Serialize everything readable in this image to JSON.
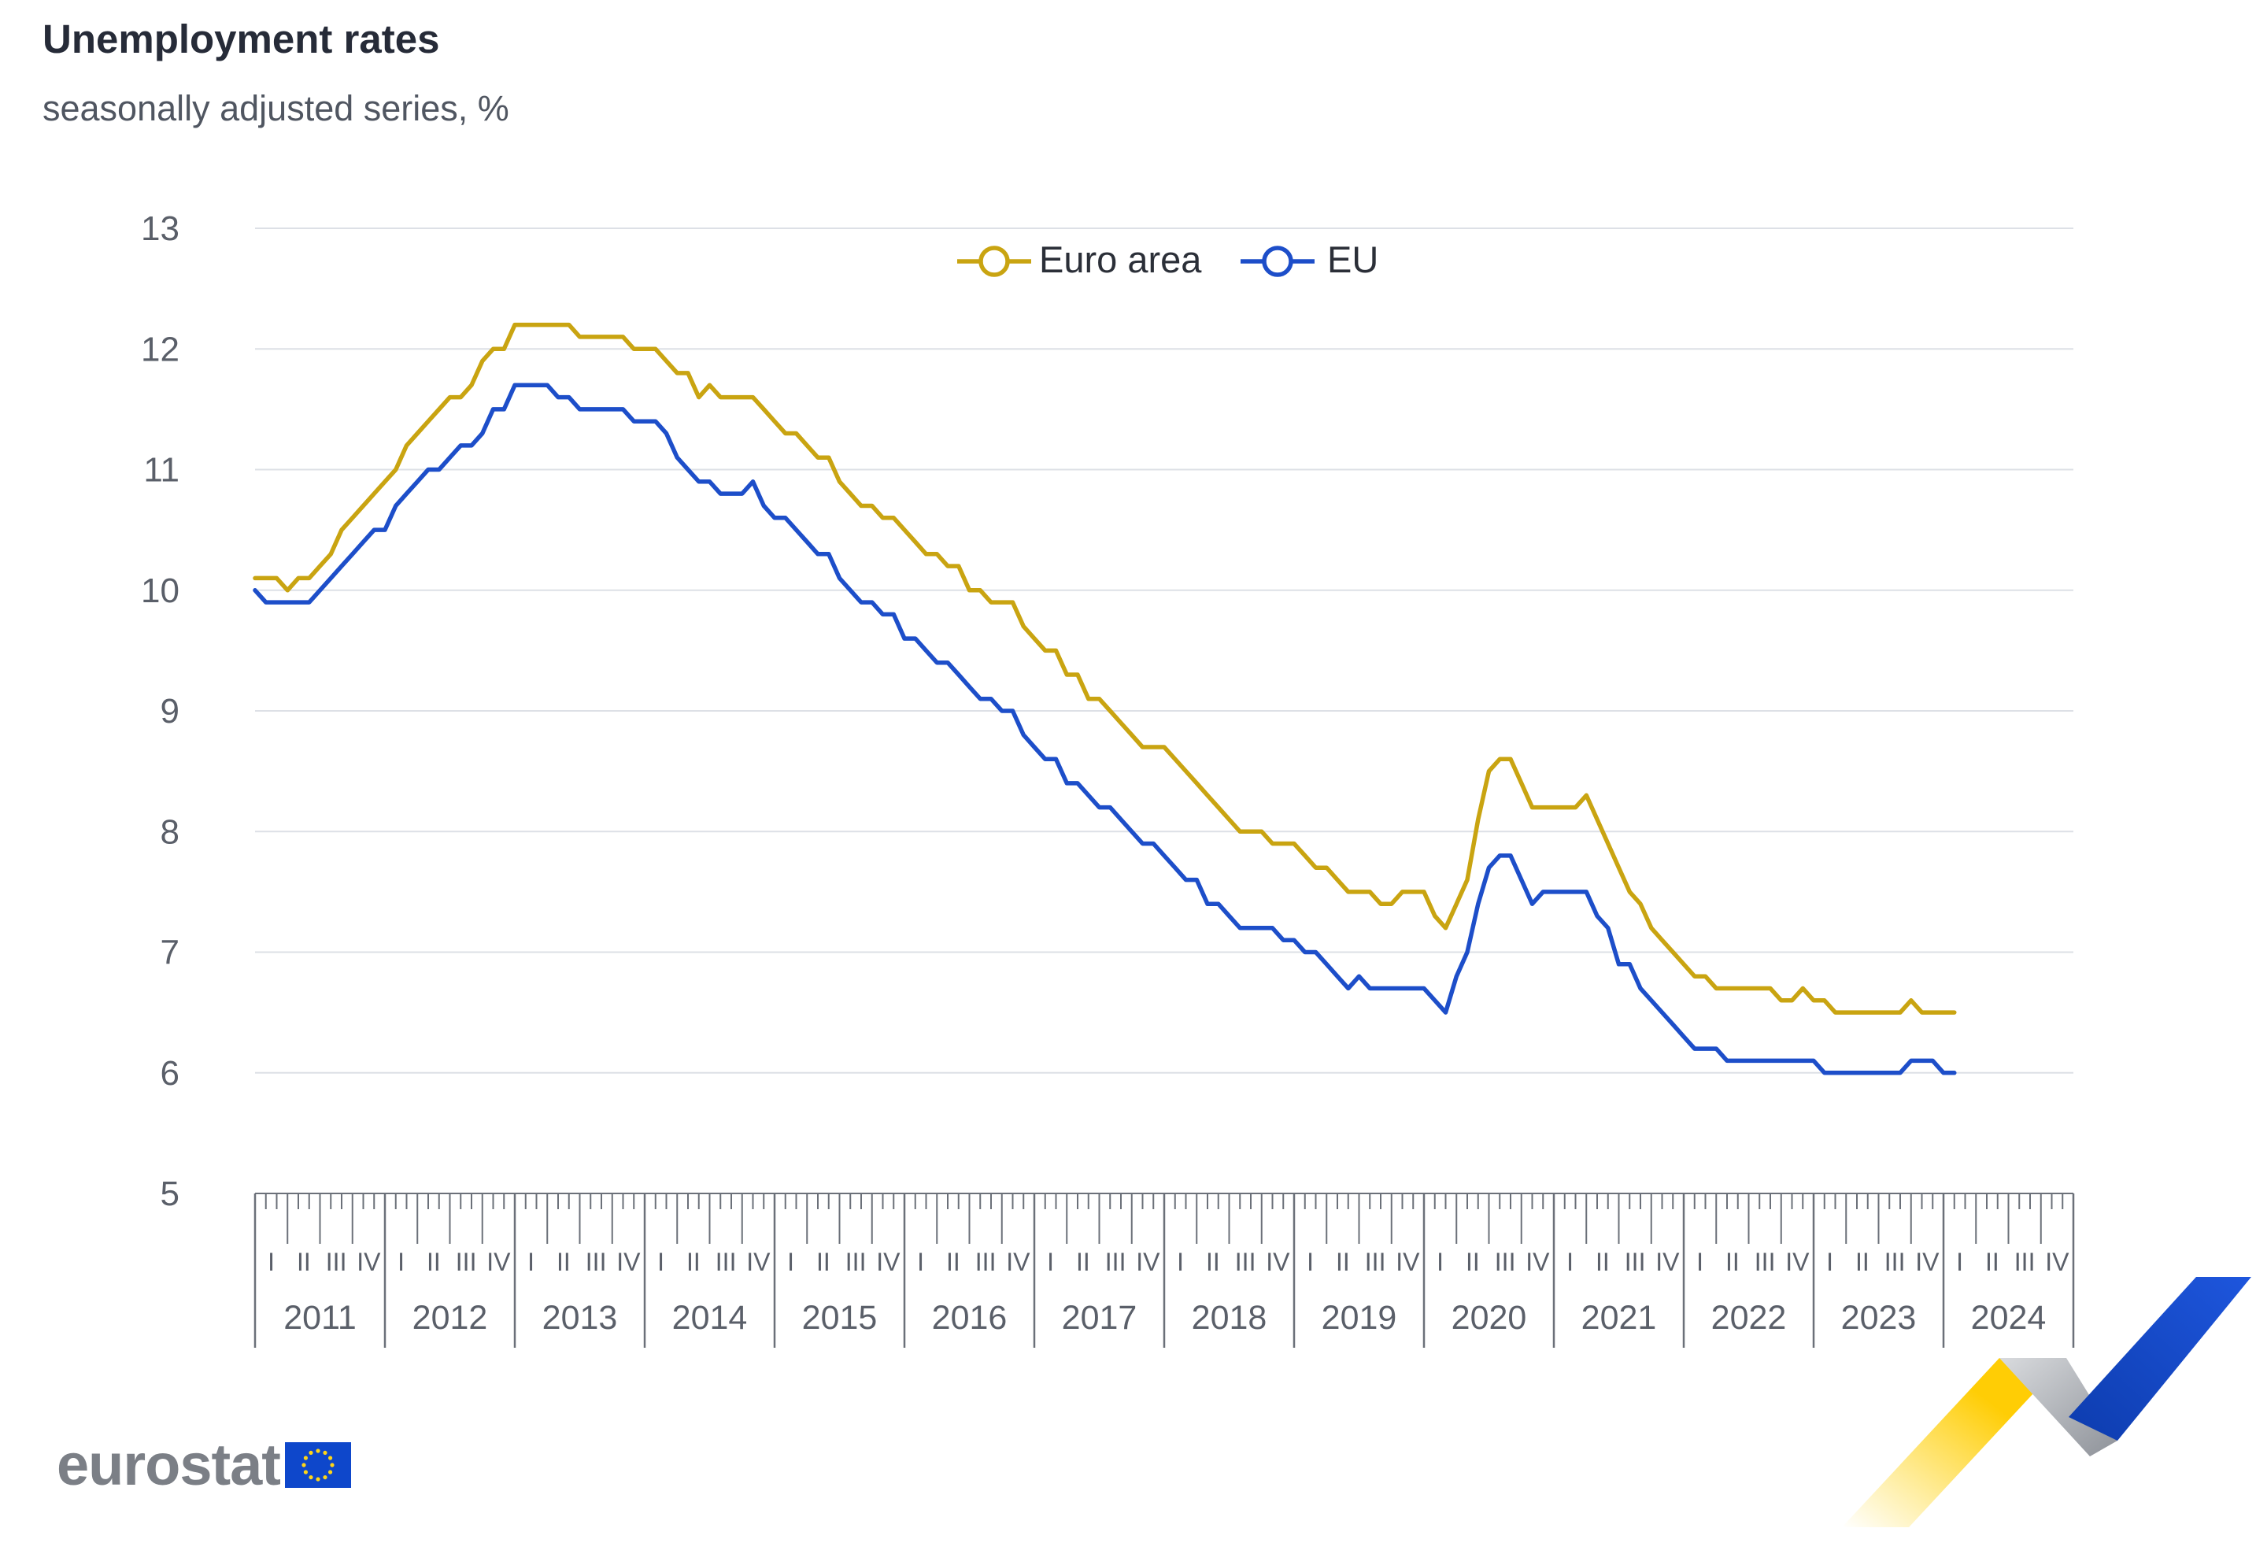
{
  "title": "Unemployment rates",
  "subtitle": "seasonally adjusted series, %",
  "brand": "eurostat",
  "colors": {
    "euro_area": "#c9a411",
    "eu": "#1d4ec9",
    "grid": "#dde0e6",
    "axis_text": "#5a5f69",
    "flag_blue": "#0e47cb",
    "flag_star": "#ffd617"
  },
  "chart_data": {
    "type": "line",
    "title": "Unemployment rates",
    "subtitle": "seasonally adjusted series, %",
    "xlabel": "",
    "ylabel": "",
    "ylim": [
      5,
      13
    ],
    "yticks": [
      5,
      6,
      7,
      8,
      9,
      10,
      11,
      12,
      13
    ],
    "grid": true,
    "legend": "top-center",
    "years": [
      "2011",
      "2012",
      "2013",
      "2014",
      "2015",
      "2016",
      "2017",
      "2018",
      "2019",
      "2020",
      "2021",
      "2022",
      "2023",
      "2024"
    ],
    "quarters": [
      "I",
      "II",
      "III",
      "IV"
    ],
    "x_start": "2011-01",
    "series": [
      {
        "name": "Euro area",
        "color": "#c9a411",
        "values": [
          10.1,
          10.1,
          10.1,
          10.0,
          10.1,
          10.1,
          10.2,
          10.3,
          10.5,
          10.6,
          10.7,
          10.8,
          10.9,
          11.0,
          11.2,
          11.3,
          11.4,
          11.5,
          11.6,
          11.6,
          11.7,
          11.9,
          12.0,
          12.0,
          12.2,
          12.2,
          12.2,
          12.2,
          12.2,
          12.2,
          12.1,
          12.1,
          12.1,
          12.1,
          12.1,
          12.0,
          12.0,
          12.0,
          11.9,
          11.8,
          11.8,
          11.6,
          11.7,
          11.6,
          11.6,
          11.6,
          11.6,
          11.5,
          11.4,
          11.3,
          11.3,
          11.2,
          11.1,
          11.1,
          10.9,
          10.8,
          10.7,
          10.7,
          10.6,
          10.6,
          10.5,
          10.4,
          10.3,
          10.3,
          10.2,
          10.2,
          10.0,
          10.0,
          9.9,
          9.9,
          9.9,
          9.7,
          9.6,
          9.5,
          9.5,
          9.3,
          9.3,
          9.1,
          9.1,
          9.0,
          8.9,
          8.8,
          8.7,
          8.7,
          8.7,
          8.6,
          8.5,
          8.4,
          8.3,
          8.2,
          8.1,
          8.0,
          8.0,
          8.0,
          7.9,
          7.9,
          7.9,
          7.8,
          7.7,
          7.7,
          7.6,
          7.5,
          7.5,
          7.5,
          7.4,
          7.4,
          7.5,
          7.5,
          7.5,
          7.3,
          7.2,
          7.4,
          7.6,
          8.1,
          8.5,
          8.6,
          8.6,
          8.4,
          8.2,
          8.2,
          8.2,
          8.2,
          8.2,
          8.3,
          8.1,
          7.9,
          7.7,
          7.5,
          7.4,
          7.2,
          7.1,
          7.0,
          6.9,
          6.8,
          6.8,
          6.7,
          6.7,
          6.7,
          6.7,
          6.7,
          6.7,
          6.6,
          6.6,
          6.7,
          6.6,
          6.6,
          6.5,
          6.5,
          6.5,
          6.5,
          6.5,
          6.5,
          6.5,
          6.6,
          6.5,
          6.5,
          6.5,
          6.5
        ]
      },
      {
        "name": "EU",
        "color": "#1d4ec9",
        "values": [
          10.0,
          9.9,
          9.9,
          9.9,
          9.9,
          9.9,
          10.0,
          10.1,
          10.2,
          10.3,
          10.4,
          10.5,
          10.5,
          10.7,
          10.8,
          10.9,
          11.0,
          11.0,
          11.1,
          11.2,
          11.2,
          11.3,
          11.5,
          11.5,
          11.7,
          11.7,
          11.7,
          11.7,
          11.6,
          11.6,
          11.5,
          11.5,
          11.5,
          11.5,
          11.5,
          11.4,
          11.4,
          11.4,
          11.3,
          11.1,
          11.0,
          10.9,
          10.9,
          10.8,
          10.8,
          10.8,
          10.9,
          10.7,
          10.6,
          10.6,
          10.5,
          10.4,
          10.3,
          10.3,
          10.1,
          10.0,
          9.9,
          9.9,
          9.8,
          9.8,
          9.6,
          9.6,
          9.5,
          9.4,
          9.4,
          9.3,
          9.2,
          9.1,
          9.1,
          9.0,
          9.0,
          8.8,
          8.7,
          8.6,
          8.6,
          8.4,
          8.4,
          8.3,
          8.2,
          8.2,
          8.1,
          8.0,
          7.9,
          7.9,
          7.8,
          7.7,
          7.6,
          7.6,
          7.4,
          7.4,
          7.3,
          7.2,
          7.2,
          7.2,
          7.2,
          7.1,
          7.1,
          7.0,
          7.0,
          6.9,
          6.8,
          6.7,
          6.8,
          6.7,
          6.7,
          6.7,
          6.7,
          6.7,
          6.7,
          6.6,
          6.5,
          6.8,
          7.0,
          7.4,
          7.7,
          7.8,
          7.8,
          7.6,
          7.4,
          7.5,
          7.5,
          7.5,
          7.5,
          7.5,
          7.3,
          7.2,
          6.9,
          6.9,
          6.7,
          6.6,
          6.5,
          6.4,
          6.3,
          6.2,
          6.2,
          6.2,
          6.1,
          6.1,
          6.1,
          6.1,
          6.1,
          6.1,
          6.1,
          6.1,
          6.1,
          6.0,
          6.0,
          6.0,
          6.0,
          6.0,
          6.0,
          6.0,
          6.0,
          6.1,
          6.1,
          6.1,
          6.0,
          6.0
        ]
      }
    ]
  }
}
